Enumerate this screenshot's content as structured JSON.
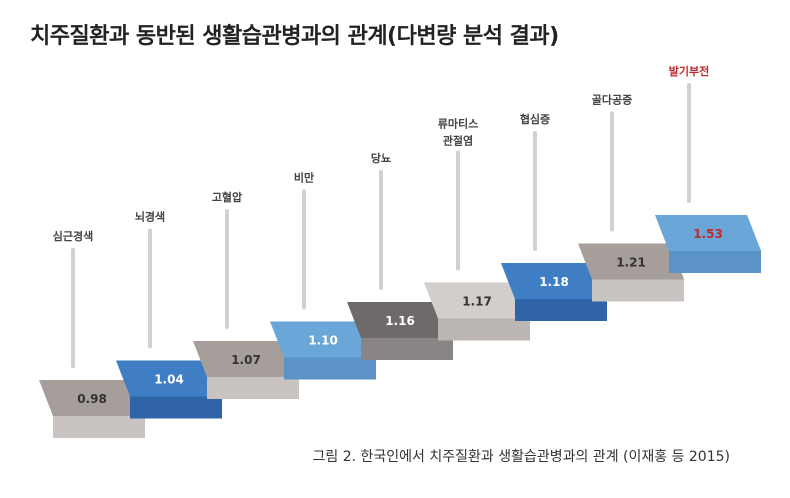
{
  "title": "치주질환과 동반된 생활습관병과의 관계(다변량 분석 결과)",
  "caption": "그림 2. 한국인에서 치주질환과 생활습관병과의 관계 (이재홍 등 2015)",
  "chart_data": {
    "type": "bar",
    "style": "3d-staircase",
    "categories": [
      "심근경색",
      "뇌경색",
      "고혈압",
      "비만",
      "당뇨",
      "류마티스\n관절염",
      "협심증",
      "골다공증",
      "발기부전"
    ],
    "values": [
      0.98,
      1.04,
      1.07,
      1.1,
      1.16,
      1.17,
      1.18,
      1.21,
      1.53
    ],
    "value_labels": [
      "0.98",
      "1.04",
      "1.07",
      "1.10",
      "1.16",
      "1.17",
      "1.18",
      "1.21",
      "1.53"
    ],
    "block_colors": [
      "gray",
      "blue",
      "gray",
      "light-blue",
      "dark-gray",
      "light-gray",
      "blue",
      "gray",
      "light-blue"
    ],
    "highlight": "발기부전",
    "highlight_color": "#c0282d",
    "xlabel": "",
    "ylabel": ""
  }
}
